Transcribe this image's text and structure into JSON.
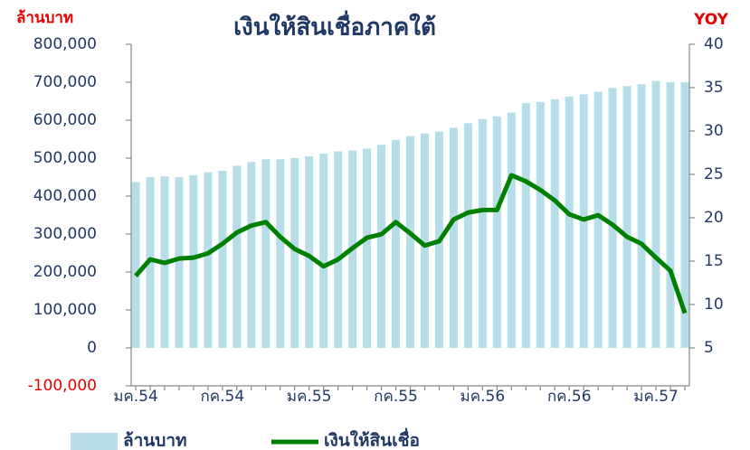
{
  "chart_data": {
    "type": "bar-line",
    "title": "เงินให้สินเชื่อภาคใต้",
    "y_label": "ล้านบาท",
    "y2_label": "YOY",
    "categories": [
      "มค.54",
      null,
      null,
      null,
      null,
      null,
      "กค.54",
      null,
      null,
      null,
      null,
      null,
      "มค.55",
      null,
      null,
      null,
      null,
      null,
      "กค.55",
      null,
      null,
      null,
      null,
      null,
      "มค.56",
      null,
      null,
      null,
      null,
      null,
      "กค.56",
      null,
      null,
      null,
      null,
      null,
      "มค.57",
      null,
      null
    ],
    "series": [
      {
        "name": "ล้านบาท",
        "type": "bar",
        "color": "#b7dde8",
        "axis": "y",
        "values": [
          437000,
          450000,
          452000,
          450000,
          455000,
          463000,
          467000,
          480000,
          490000,
          497000,
          497000,
          500000,
          505000,
          512000,
          518000,
          520000,
          525000,
          535000,
          548000,
          558000,
          565000,
          570000,
          580000,
          592000,
          603000,
          610000,
          620000,
          645000,
          648000,
          655000,
          662000,
          668000,
          675000,
          685000,
          690000,
          695000,
          703000,
          700000,
          700000
        ]
      },
      {
        "name": "เงินให้สินเชื่อ",
        "type": "line",
        "color": "#008000",
        "axis": "y2",
        "values": [
          13.3,
          15.2,
          14.8,
          15.3,
          15.4,
          15.9,
          17.0,
          18.3,
          19.1,
          19.5,
          17.8,
          16.4,
          15.6,
          14.4,
          15.2,
          16.5,
          17.7,
          18.1,
          19.5,
          18.2,
          16.8,
          17.3,
          19.8,
          20.6,
          20.9,
          20.9,
          24.9,
          24.2,
          23.2,
          22.0,
          20.4,
          19.8,
          20.3,
          19.2,
          17.8,
          17.0,
          15.4,
          13.9,
          9.0
        ]
      }
    ],
    "ylim": [
      -100000,
      800000
    ],
    "yticks": [
      {
        "value": -100000,
        "label": "-100,000"
      },
      0,
      {
        "value": 100000,
        "label": "100,000"
      },
      {
        "value": 200000,
        "label": "200,000"
      },
      {
        "value": 300000,
        "label": "300,000"
      },
      {
        "value": 400000,
        "label": "400,000"
      },
      {
        "value": 500000,
        "label": "500,000"
      },
      {
        "value": 600000,
        "label": "600,000"
      },
      {
        "value": 700000,
        "label": "700,000"
      },
      {
        "value": 800000,
        "label": "800,000"
      }
    ],
    "y2lim": [
      5,
      40
    ],
    "y2ticks": [
      5,
      10,
      15,
      20,
      25,
      30,
      35,
      40
    ],
    "negative_tick_color": "#e60000",
    "axis_label_color": "#e60000",
    "tick_color": "#1f3864",
    "title_color": "#1f3864",
    "legend": "bottom"
  }
}
